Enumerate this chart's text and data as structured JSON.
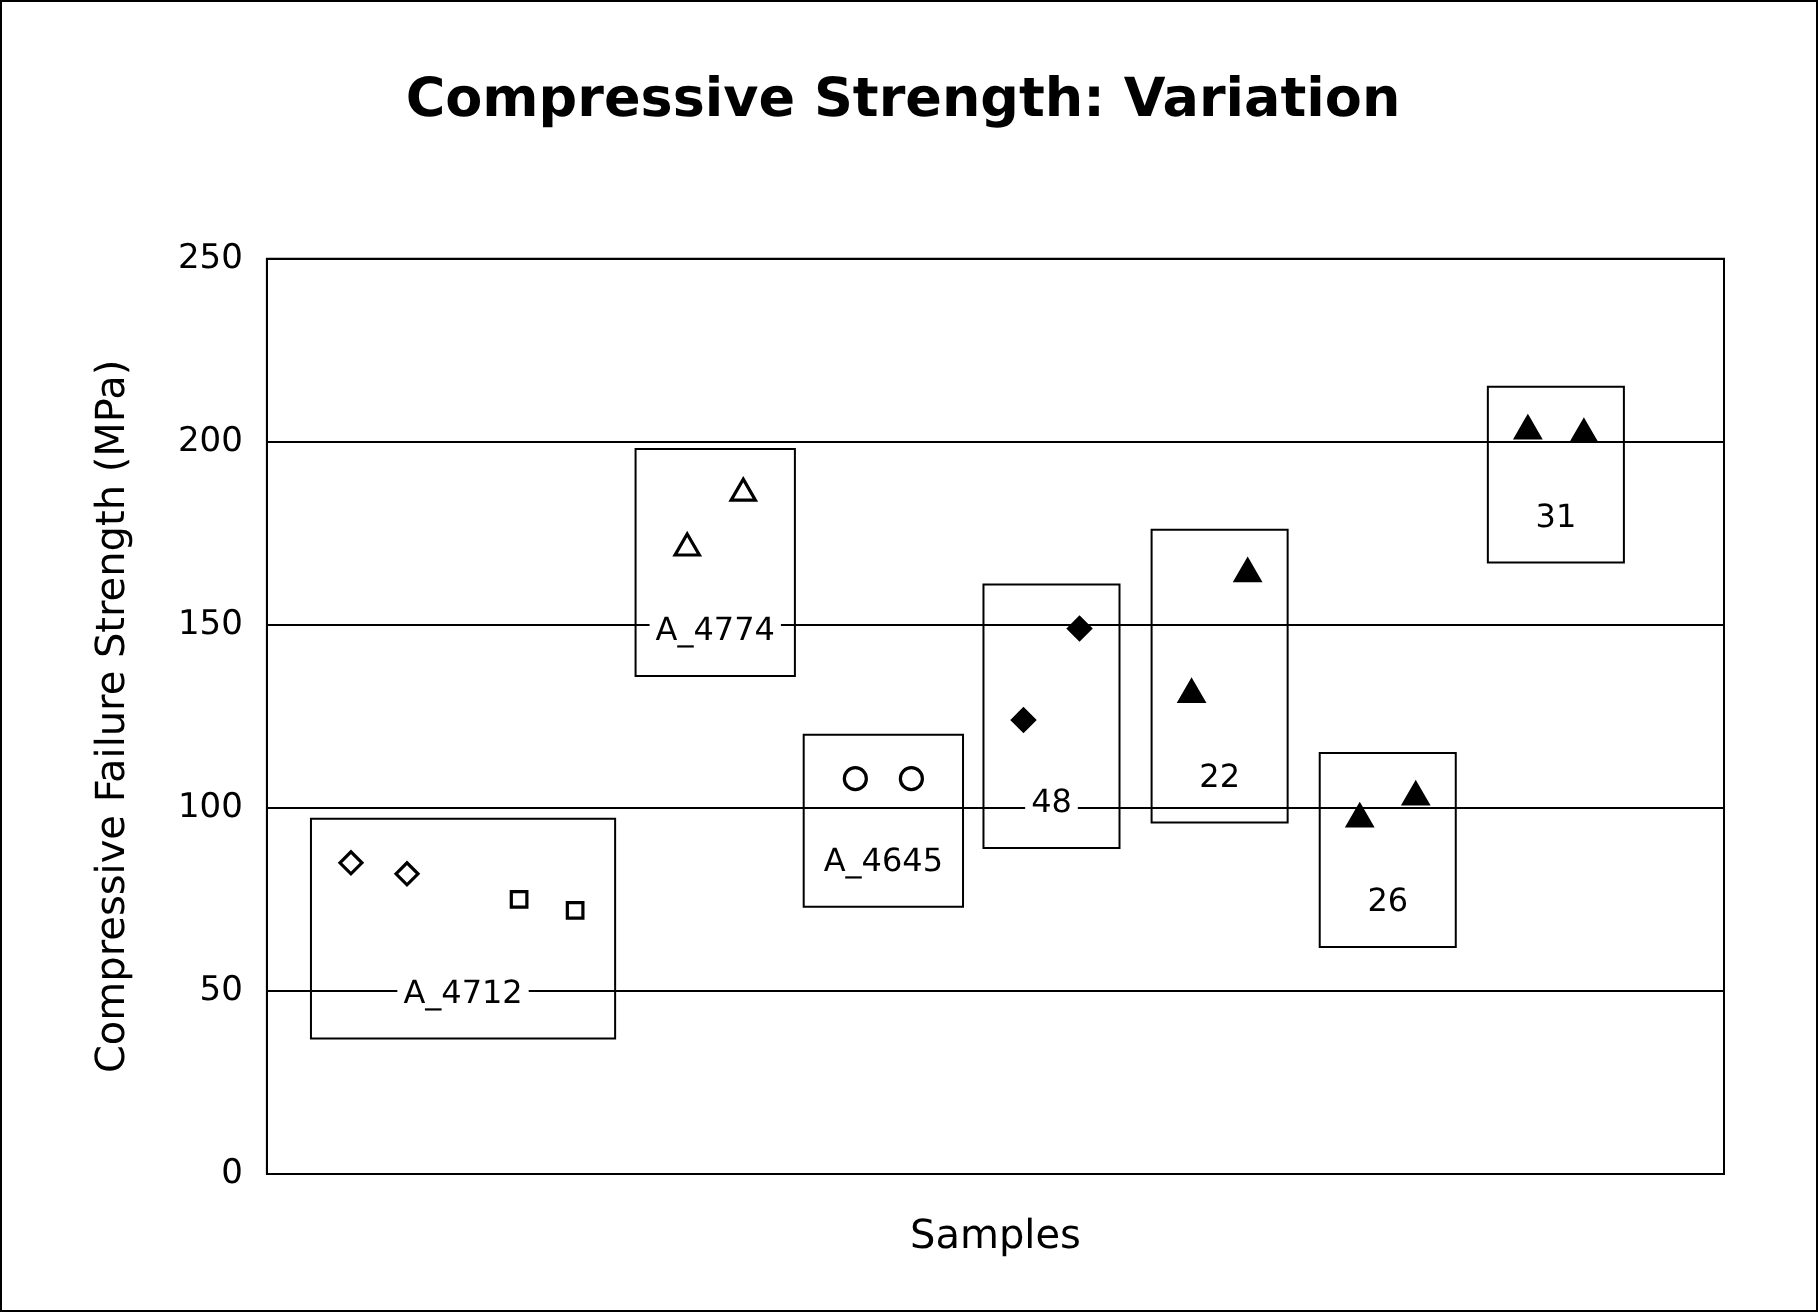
{
  "chart_data": {
    "type": "scatter",
    "title": "Compressive Strength: Variation",
    "xlabel": "Samples",
    "ylabel": "Compressive Failure Strength (MPa)",
    "categories": [
      null,
      null,
      null,
      null,
      null,
      null,
      null,
      null,
      null,
      null,
      null,
      null,
      null,
      null,
      null,
      null,
      null,
      null,
      null,
      null,
      null,
      null,
      null,
      null,
      null,
      null
    ],
    "ylim": [
      0,
      250
    ],
    "yticks": [
      0,
      50,
      100,
      150,
      200,
      250
    ],
    "grid": "y",
    "tick_labels": "y",
    "legend": false,
    "series": [
      {
        "color": "#ffffff",
        "marker": "diamond",
        "values": [
          null,
          85,
          82,
          null,
          null,
          null,
          null,
          null,
          null,
          null,
          null,
          null,
          null,
          null,
          null,
          null,
          null,
          null,
          null,
          null,
          null,
          null,
          null,
          null,
          null,
          null
        ]
      },
      {
        "color": "#ffffff",
        "marker": "square",
        "values": [
          null,
          null,
          null,
          null,
          75,
          72,
          null,
          null,
          null,
          null,
          null,
          null,
          null,
          null,
          null,
          null,
          null,
          null,
          null,
          null,
          null,
          null,
          null,
          null,
          null,
          null
        ]
      },
      {
        "color": "#ffffff",
        "marker": "triangle",
        "values": [
          null,
          null,
          null,
          null,
          null,
          null,
          null,
          171,
          186,
          null,
          null,
          null,
          null,
          null,
          null,
          null,
          null,
          null,
          null,
          null,
          null,
          null,
          null,
          null,
          null,
          null
        ]
      },
      {
        "color": "#ffffff",
        "marker": "circle",
        "values": [
          null,
          null,
          null,
          null,
          null,
          null,
          null,
          null,
          null,
          null,
          108,
          108,
          null,
          null,
          null,
          null,
          null,
          null,
          null,
          null,
          null,
          null,
          null,
          null,
          null,
          null
        ]
      },
      {
        "color": "#000000",
        "marker": "diamond",
        "values": [
          null,
          null,
          null,
          null,
          null,
          null,
          null,
          null,
          null,
          null,
          null,
          null,
          null,
          124,
          149,
          null,
          null,
          null,
          null,
          null,
          null,
          null,
          null,
          null,
          null,
          null
        ]
      },
      {
        "color": "#000000",
        "marker": "triangle",
        "values": [
          null,
          null,
          null,
          null,
          null,
          null,
          null,
          null,
          null,
          null,
          null,
          null,
          null,
          null,
          null,
          null,
          131,
          164,
          null,
          null,
          null,
          null,
          null,
          null,
          null,
          null
        ]
      },
      {
        "color": "#000000",
        "marker": "triangle",
        "values": [
          null,
          null,
          null,
          null,
          null,
          null,
          null,
          null,
          null,
          null,
          null,
          null,
          null,
          null,
          null,
          null,
          null,
          null,
          null,
          97,
          103,
          null,
          null,
          null,
          null,
          null
        ]
      },
      {
        "color": "#000000",
        "marker": "triangle",
        "values": [
          null,
          null,
          null,
          null,
          null,
          null,
          null,
          null,
          null,
          null,
          null,
          null,
          null,
          null,
          null,
          null,
          null,
          null,
          null,
          null,
          null,
          null,
          203,
          202,
          null,
          null
        ]
      }
    ],
    "annotations": [
      "A_4712",
      "A_4774",
      "A_4645",
      "48",
      "22",
      "26",
      "31"
    ]
  }
}
